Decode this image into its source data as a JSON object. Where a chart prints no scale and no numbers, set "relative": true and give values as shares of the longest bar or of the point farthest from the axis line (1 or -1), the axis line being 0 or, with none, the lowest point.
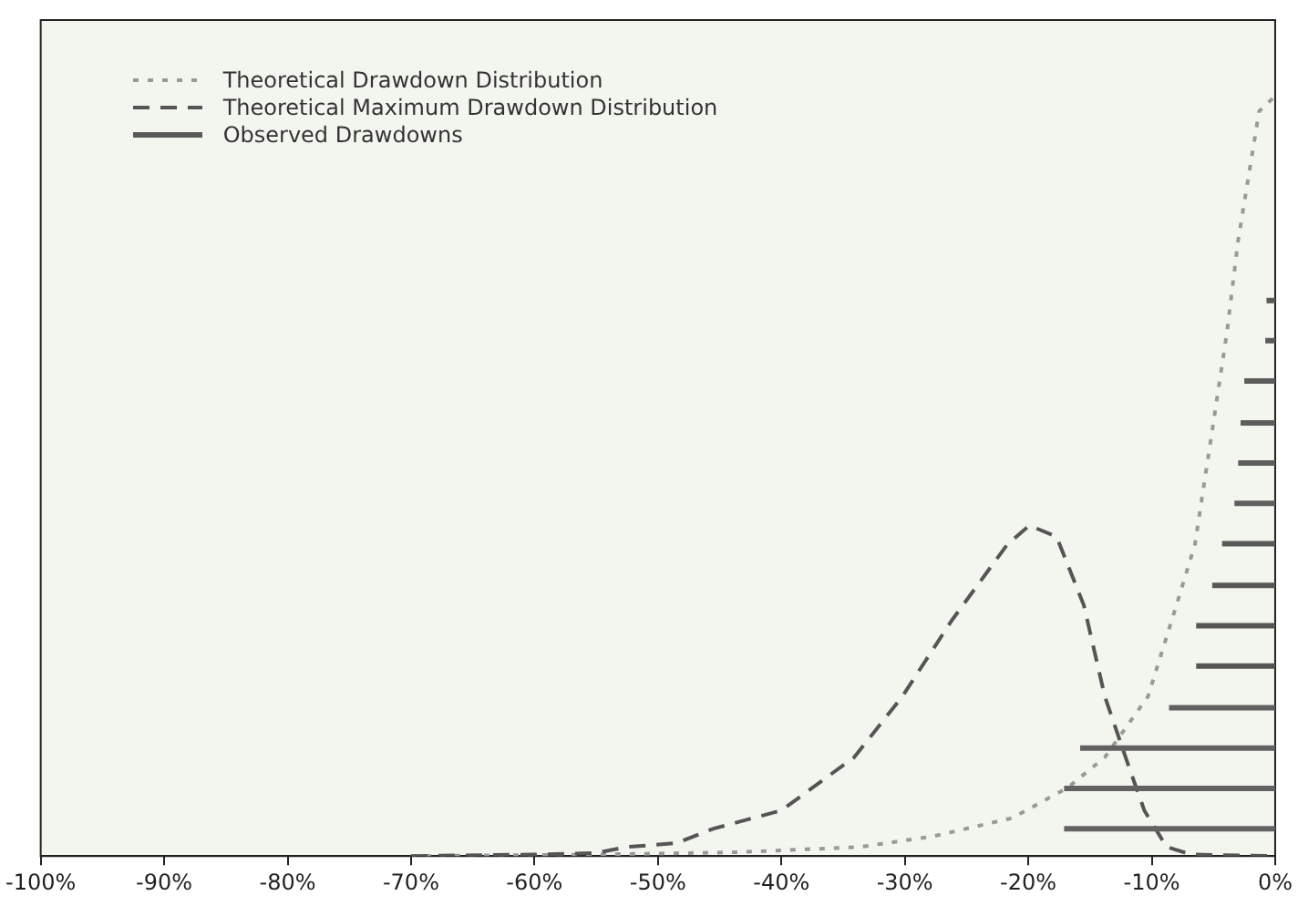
{
  "chart_data": {
    "type": "line",
    "relative": true,
    "legend": "top left",
    "marker": "none",
    "grid": false,
    "xlim": [
      -100,
      0
    ],
    "xticks": [
      {
        "value": -100,
        "label": "-100%"
      },
      {
        "value": -90,
        "label": "-90%"
      },
      {
        "value": -80,
        "label": "-80%"
      },
      {
        "value": -70,
        "label": "-70%"
      },
      {
        "value": -60,
        "label": "-60%"
      },
      {
        "value": -50,
        "label": "-50%"
      },
      {
        "value": -40,
        "label": "-40%"
      },
      {
        "value": -30,
        "label": "-30%"
      },
      {
        "value": -20,
        "label": "-20%"
      },
      {
        "value": -10,
        "label": "-10%"
      },
      {
        "value": 0,
        "label": "0%"
      }
    ],
    "series": [
      {
        "name": "Theoretical Drawdown Distribution",
        "color": "#999999",
        "line_style": "dotted",
        "x": [
          -70,
          -55,
          -43.6,
          -33.6,
          -27.7,
          -21.3,
          -16.8,
          -13.8,
          -10.3,
          -8,
          -6.5,
          -5.1,
          -3.9,
          -3,
          -2.1,
          -1.3,
          0
        ],
        "values": [
          0,
          0.002,
          0.005,
          0.012,
          0.026,
          0.05,
          0.09,
          0.13,
          0.21,
          0.33,
          0.41,
          0.56,
          0.69,
          0.81,
          0.9,
          0.98,
          1
        ]
      },
      {
        "name": "Theoretical Maximum Drawdown Distribution",
        "color": "#555555",
        "line_style": "dashed",
        "x": [
          -70,
          -60,
          -55,
          -52.5,
          -48.5,
          -45.5,
          -40,
          -34.1,
          -30.2,
          -26.2,
          -21.7,
          -19.9,
          -17.7,
          -15.5,
          -13.8,
          -11.8,
          -10.6,
          -8.8,
          -6.8,
          0
        ],
        "values": [
          0,
          0.002,
          0.004,
          0.012,
          0.017,
          0.036,
          0.06,
          0.13,
          0.21,
          0.31,
          0.41,
          0.435,
          0.42,
          0.33,
          0.21,
          0.115,
          0.06,
          0.012,
          0.002,
          0
        ]
      },
      {
        "name": "Observed Drawdowns",
        "color": "#5a5a5a",
        "line_style": "solid",
        "x": [
          -0.7,
          0
        ],
        "values": [
          0.731,
          0.731
        ]
      },
      {
        "color": "#5b5b5b",
        "line_style": "solid",
        "x": [
          -0.8,
          0
        ],
        "values": [
          0.678,
          0.678
        ]
      },
      {
        "color": "#5c5c5c",
        "line_style": "solid",
        "x": [
          -2.5,
          0
        ],
        "values": [
          0.625,
          0.625
        ]
      },
      {
        "color": "#5d5d5d",
        "line_style": "solid",
        "x": [
          -2.8,
          0
        ],
        "values": [
          0.57,
          0.57
        ]
      },
      {
        "color": "#5e5e5e",
        "line_style": "solid",
        "x": [
          -3,
          0
        ],
        "values": [
          0.517,
          0.517
        ]
      },
      {
        "color": "#5f5f5f",
        "line_style": "solid",
        "x": [
          -3.3,
          0
        ],
        "values": [
          0.464,
          0.464
        ]
      },
      {
        "color": "#595959",
        "line_style": "solid",
        "x": [
          -4.3,
          0
        ],
        "values": [
          0.411,
          0.411
        ]
      },
      {
        "color": "#585858",
        "line_style": "solid",
        "x": [
          -5.1,
          0
        ],
        "values": [
          0.356,
          0.356
        ]
      },
      {
        "color": "#575757",
        "line_style": "solid",
        "x": [
          -6.4,
          0
        ],
        "values": [
          0.303,
          0.303
        ]
      },
      {
        "color": "#565656",
        "line_style": "solid",
        "x": [
          -6.4,
          0
        ],
        "values": [
          0.25,
          0.25
        ]
      },
      {
        "color": "#606060",
        "line_style": "solid",
        "x": [
          -8.6,
          0
        ],
        "values": [
          0.195,
          0.195
        ]
      },
      {
        "color": "#616161",
        "line_style": "solid",
        "x": [
          -15.8,
          0
        ],
        "values": [
          0.142,
          0.142
        ]
      },
      {
        "color": "#626262",
        "line_style": "solid",
        "x": [
          -17.1,
          0
        ],
        "values": [
          0.089,
          0.089
        ]
      },
      {
        "color": "#636363",
        "line_style": "solid",
        "x": [
          -17.1,
          0
        ],
        "values": [
          0.036,
          0.036
        ]
      }
    ]
  }
}
